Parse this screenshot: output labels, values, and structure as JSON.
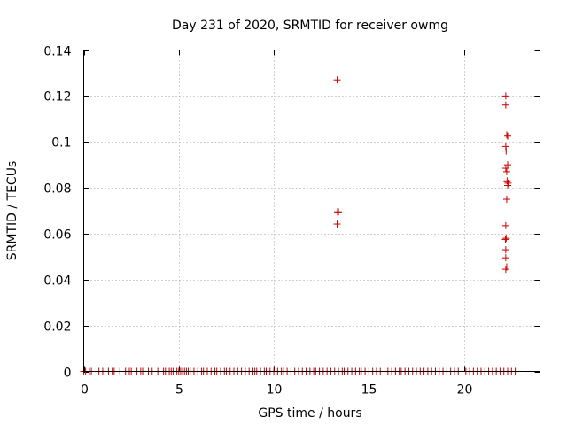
{
  "chart_data": {
    "type": "scatter",
    "title": "Day 231 of 2020, SRMTID for receiver owmg",
    "xlabel": "GPS time / hours",
    "ylabel": "SRMTID / TECUs",
    "xlim": [
      0,
      24
    ],
    "ylim": [
      0,
      0.14
    ],
    "xticks": [
      0,
      5,
      10,
      15,
      20
    ],
    "yticks": [
      0,
      0.02,
      0.04,
      0.06,
      0.08,
      0.1,
      0.12,
      0.14
    ],
    "xtick_labels": [
      "0",
      "5",
      "10",
      "15",
      "20"
    ],
    "ytick_labels": [
      "0",
      "0.02",
      "0.04",
      "0.06",
      "0.08",
      "0.1",
      "0.12",
      "0.14"
    ],
    "grid": true,
    "marker": "+",
    "color": "#cc0000",
    "points": [
      [
        13.33,
        0.127
      ],
      [
        13.35,
        0.0695
      ],
      [
        13.4,
        0.0695
      ],
      [
        13.33,
        0.0642
      ],
      [
        22.2,
        0.12
      ],
      [
        22.2,
        0.116
      ],
      [
        22.25,
        0.103
      ],
      [
        22.3,
        0.1025
      ],
      [
        22.2,
        0.098
      ],
      [
        22.22,
        0.096
      ],
      [
        22.3,
        0.09
      ],
      [
        22.2,
        0.0885
      ],
      [
        22.25,
        0.087
      ],
      [
        22.27,
        0.083
      ],
      [
        22.32,
        0.082
      ],
      [
        22.3,
        0.081
      ],
      [
        22.25,
        0.075
      ],
      [
        22.2,
        0.0635
      ],
      [
        22.22,
        0.058
      ],
      [
        22.18,
        0.0575
      ],
      [
        22.2,
        0.053
      ],
      [
        22.2,
        0.0495
      ],
      [
        22.25,
        0.0455
      ],
      [
        22.2,
        0.0445
      ]
    ],
    "zero_points_x": [
      0.0,
      0.1,
      0.3,
      0.4,
      0.7,
      0.8,
      1.0,
      1.3,
      1.5,
      1.6,
      1.9,
      2.2,
      2.4,
      2.5,
      2.8,
      3.0,
      3.1,
      3.4,
      3.6,
      3.9,
      4.2,
      4.3,
      4.5,
      4.6,
      4.7,
      4.8,
      4.9,
      5.0,
      5.1,
      5.2,
      5.3,
      5.4,
      5.5,
      5.6,
      5.8,
      6.0,
      6.2,
      6.3,
      6.5,
      6.7,
      6.9,
      7.0,
      7.2,
      7.4,
      7.5,
      7.7,
      7.9,
      8.1,
      8.3,
      8.5,
      8.7,
      8.9,
      9.0,
      9.1,
      9.3,
      9.5,
      9.6,
      9.8,
      10.0,
      10.2,
      10.4,
      10.5,
      10.7,
      10.9,
      11.1,
      11.3,
      11.5,
      11.7,
      11.9,
      12.1,
      12.2,
      12.4,
      12.6,
      12.8,
      13.0,
      13.2,
      13.4,
      13.6,
      13.7,
      13.9,
      14.1,
      14.3,
      14.5,
      14.6,
      14.8,
      15.0,
      15.2,
      15.4,
      15.6,
      15.8,
      16.0,
      16.2,
      16.4,
      16.6,
      16.7,
      16.9,
      17.1,
      17.3,
      17.5,
      17.7,
      17.9,
      18.1,
      18.3,
      18.5,
      18.7,
      18.9,
      19.1,
      19.3,
      19.5,
      19.7,
      19.9,
      20.1,
      20.3,
      20.5,
      20.7,
      20.9,
      21.1,
      21.3,
      21.5,
      21.7,
      21.9,
      22.1,
      22.3,
      22.5,
      22.7
    ]
  }
}
